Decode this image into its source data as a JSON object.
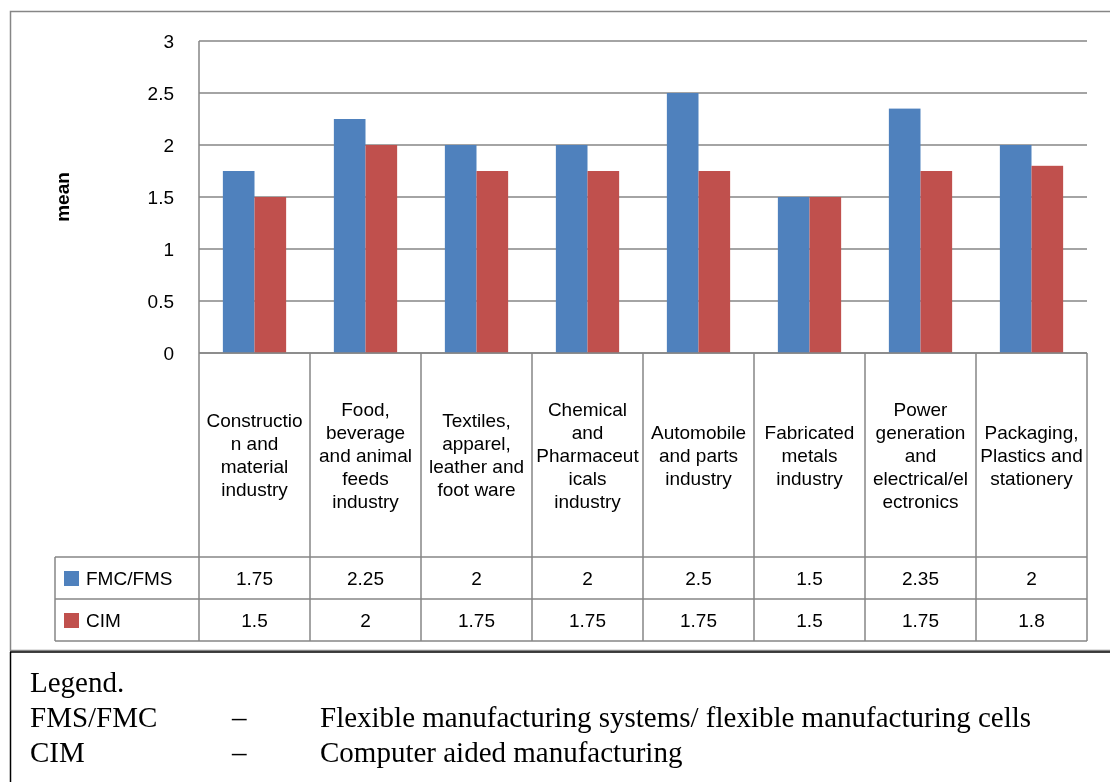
{
  "chart_data": {
    "type": "bar",
    "ylabel": "mean",
    "categories": [
      "Construction and material industry",
      "Food, beverage and animal feeds industry",
      "Textiles, apparel, leather and foot ware",
      "Chemical and Pharmaceuticals industry",
      "Automobile and parts industry",
      "Fabricated metals industry",
      "Power generation and electrical/electronics",
      "Packaging, Plastics and stationery"
    ],
    "series": [
      {
        "name": "FMC/FMS",
        "color": "#4f81bd",
        "values": [
          1.75,
          2.25,
          2,
          2,
          2.5,
          1.5,
          2.35,
          2
        ]
      },
      {
        "name": "CIM",
        "color": "#c0504d",
        "values": [
          1.5,
          2,
          1.75,
          1.75,
          1.75,
          1.5,
          1.75,
          1.8
        ]
      }
    ],
    "ylim": [
      0,
      3
    ],
    "yticks": [
      0,
      0.5,
      1,
      1.5,
      2,
      2.5,
      3
    ],
    "grid": "y",
    "legend": "bottom",
    "data_labels": true,
    "annotations": [
      "Legend.",
      "FMS/FMC\t–\tFlexible manufacturing systems/ flexible manufacturing cells",
      "CIM\t–\tComputer aided manufacturing"
    ]
  }
}
